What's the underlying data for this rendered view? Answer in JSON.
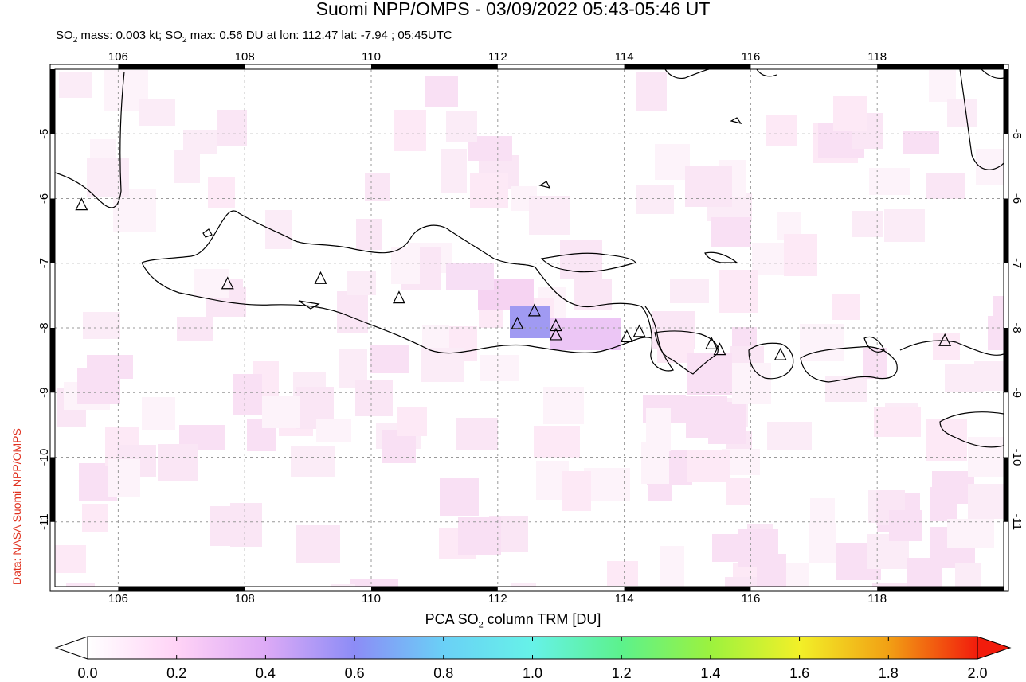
{
  "header": {
    "title": "Suomi NPP/OMPS - 03/09/2022 05:43-05:46 UT",
    "subtitle_prefix": "SO",
    "subtitle_sub": "2",
    "subtitle_mid": " mass: 0.003 kt; SO",
    "subtitle_sub2": "2",
    "subtitle_rest": " max: 0.56 DU at lon: 112.47 lat: -7.94 ; 05:45UTC"
  },
  "credit": "Data: NASA Suomi-NPP/OMPS",
  "map": {
    "lon_range": [
      105,
      120
    ],
    "lat_range": [
      -12,
      -4
    ],
    "lon_ticks": [
      "106",
      "108",
      "110",
      "112",
      "114",
      "116",
      "118"
    ],
    "lat_ticks": [
      "-5",
      "-6",
      "-7",
      "-8",
      "-9",
      "-10",
      "-11"
    ],
    "volcanoes": [
      {
        "lon": 105.42,
        "lat": -6.1
      },
      {
        "lon": 107.73,
        "lat": -7.32
      },
      {
        "lon": 109.2,
        "lat": -7.24
      },
      {
        "lon": 110.44,
        "lat": -7.54
      },
      {
        "lon": 112.31,
        "lat": -7.94
      },
      {
        "lon": 112.58,
        "lat": -7.74
      },
      {
        "lon": 112.92,
        "lat": -7.97
      },
      {
        "lon": 112.92,
        "lat": -8.11
      },
      {
        "lon": 114.04,
        "lat": -8.14
      },
      {
        "lon": 114.24,
        "lat": -8.06
      },
      {
        "lon": 115.38,
        "lat": -8.25
      },
      {
        "lon": 115.51,
        "lat": -8.34
      },
      {
        "lon": 116.47,
        "lat": -8.42
      },
      {
        "lon": 119.07,
        "lat": -8.2
      }
    ]
  },
  "colorbar": {
    "label_prefix": "PCA SO",
    "label_sub": "2",
    "label_suffix": " column TRM [DU]",
    "min": 0.0,
    "max": 2.0,
    "ticks": [
      "0.0",
      "0.2",
      "0.4",
      "0.6",
      "0.8",
      "1.0",
      "1.2",
      "1.4",
      "1.6",
      "1.8",
      "2.0"
    ],
    "colors": [
      "#ffffff",
      "#ffd3f6",
      "#ddaaf6",
      "#8c8cf6",
      "#6ad0f6",
      "#66f2e8",
      "#5cf28c",
      "#9cf23e",
      "#f2f028",
      "#f2a014",
      "#f21c0c"
    ]
  }
}
